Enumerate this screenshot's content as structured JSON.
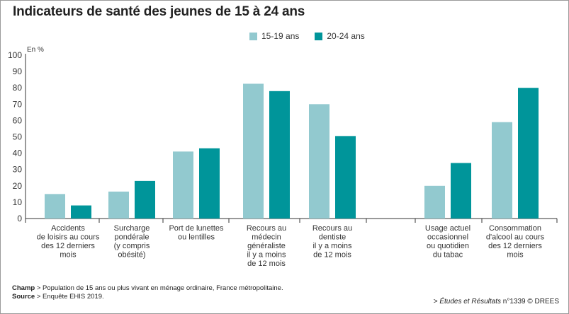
{
  "title": "Indicateurs de santé des jeunes de 15 à 24 ans",
  "colors": {
    "series1": "#92c9cf",
    "series2": "#00959a",
    "axis": "#333333",
    "grid": "#ffffff"
  },
  "notes": {
    "champ_label": "Champ",
    "champ_text": " > Population de 15 ans ou plus vivant en ménage ordinaire, France métropolitaine.",
    "source_label": "Source",
    "source_text": " > Enquête EHIS 2019."
  },
  "credit": {
    "prefix": "> ",
    "publication": "Études et Résultats",
    "suffix": " n°1339 © DREES"
  },
  "chart_data": {
    "type": "bar",
    "title": "Indicateurs de santé des jeunes de 15 à 24 ans",
    "ylabel": "En %",
    "xlabel": "",
    "ylim": [
      0,
      100
    ],
    "yticks": [
      0,
      10,
      20,
      30,
      40,
      50,
      60,
      70,
      80,
      90,
      100
    ],
    "grid": false,
    "legend_position": "top-center",
    "categories": [
      [
        "Accidents",
        "de loisirs au cours",
        "des 12 derniers",
        "mois"
      ],
      [
        "Surcharge",
        "pondérale",
        "(y compris",
        "obésité)"
      ],
      [
        "Port de lunettes",
        "ou lentilles"
      ],
      [
        "Recours au",
        "médecin",
        "généraliste",
        "il y a moins",
        "de 12 mois"
      ],
      [
        "Recours au",
        "dentiste",
        "il y a moins",
        "de 12 mois"
      ],
      [
        "Usage actuel",
        "occasionnel",
        "ou quotidien",
        "du tabac"
      ],
      [
        "Consommation",
        "d'alcool au cours",
        "des 12 derniers",
        "mois"
      ]
    ],
    "series": [
      {
        "name": "15-19 ans",
        "values": [
          15,
          16.5,
          41,
          82.5,
          70,
          20,
          59
        ]
      },
      {
        "name": "20-24 ans",
        "values": [
          8,
          23,
          43,
          78,
          50.5,
          34,
          80
        ]
      }
    ]
  }
}
